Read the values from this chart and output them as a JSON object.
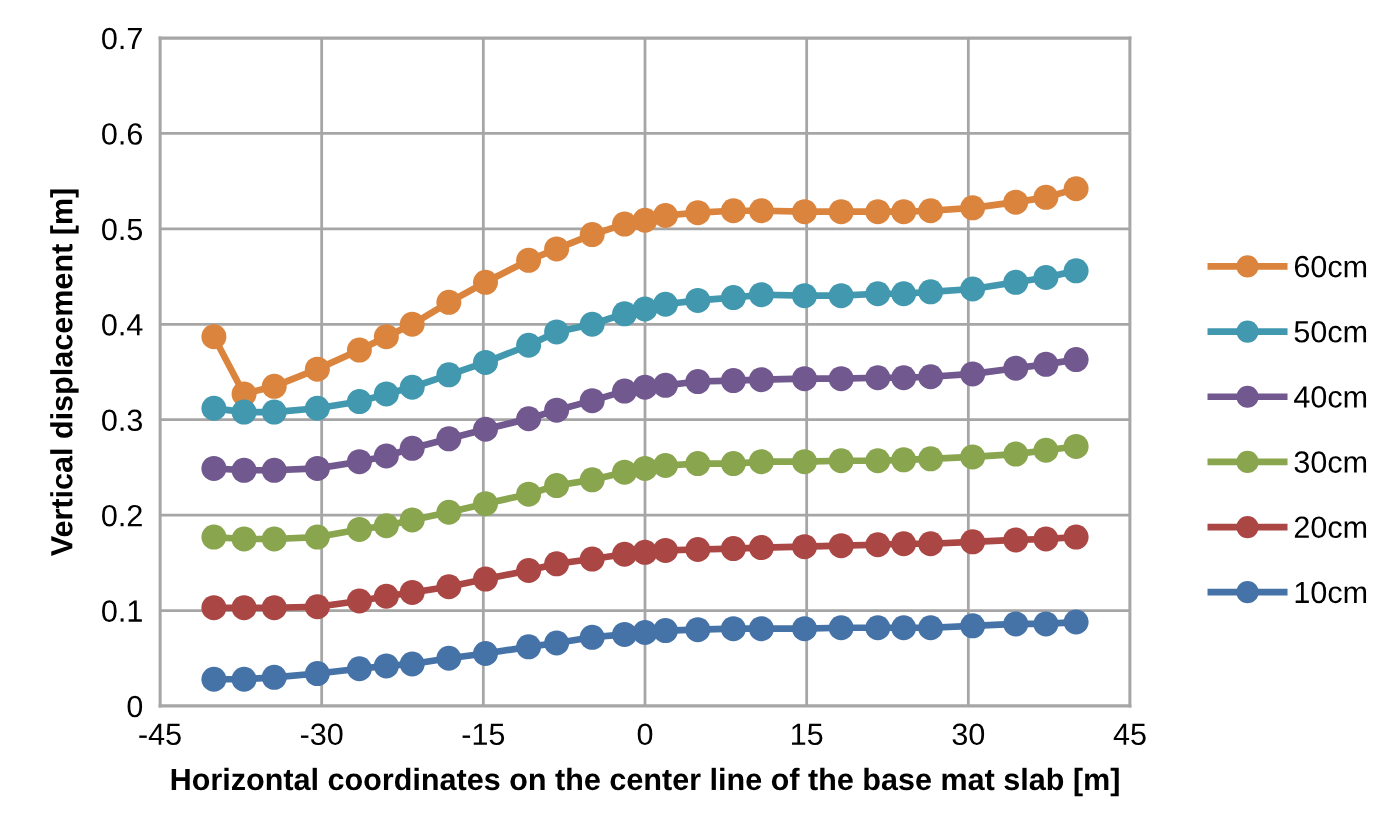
{
  "chart_data": {
    "type": "line",
    "xlabel": "Horizontal coordinates on the center line of the base mat slab [m]",
    "ylabel": "Vertical displacement [m]",
    "x": [
      -40,
      -37.2,
      -34.4,
      -30.4,
      -26.5,
      -24,
      -21.6,
      -18.2,
      -14.8,
      -10.8,
      -8.2,
      -4.9,
      -1.9,
      0,
      1.9,
      4.9,
      8.2,
      10.8,
      14.8,
      18.2,
      21.6,
      24,
      26.5,
      30.4,
      34.4,
      37.2,
      40
    ],
    "series": [
      {
        "name": "60cm",
        "color": "#db843d",
        "values": [
          0.387,
          0.327,
          0.335,
          0.353,
          0.373,
          0.387,
          0.4,
          0.423,
          0.444,
          0.467,
          0.479,
          0.494,
          0.505,
          0.509,
          0.514,
          0.517,
          0.519,
          0.519,
          0.518,
          0.518,
          0.518,
          0.518,
          0.519,
          0.522,
          0.528,
          0.533,
          0.542
        ]
      },
      {
        "name": "50cm",
        "color": "#4198af",
        "values": [
          0.312,
          0.308,
          0.308,
          0.312,
          0.319,
          0.327,
          0.334,
          0.347,
          0.36,
          0.378,
          0.392,
          0.4,
          0.411,
          0.416,
          0.421,
          0.425,
          0.428,
          0.431,
          0.43,
          0.43,
          0.432,
          0.432,
          0.434,
          0.437,
          0.444,
          0.449,
          0.456
        ]
      },
      {
        "name": "40cm",
        "color": "#71588f",
        "values": [
          0.249,
          0.247,
          0.247,
          0.249,
          0.256,
          0.262,
          0.27,
          0.28,
          0.29,
          0.301,
          0.31,
          0.32,
          0.33,
          0.334,
          0.336,
          0.34,
          0.341,
          0.342,
          0.343,
          0.343,
          0.344,
          0.344,
          0.345,
          0.348,
          0.354,
          0.358,
          0.363
        ]
      },
      {
        "name": "30cm",
        "color": "#89a54e",
        "values": [
          0.177,
          0.175,
          0.175,
          0.177,
          0.185,
          0.189,
          0.195,
          0.203,
          0.212,
          0.222,
          0.231,
          0.237,
          0.245,
          0.249,
          0.252,
          0.254,
          0.254,
          0.256,
          0.256,
          0.257,
          0.257,
          0.258,
          0.259,
          0.261,
          0.264,
          0.268,
          0.272
        ]
      },
      {
        "name": "20cm",
        "color": "#aa4643",
        "values": [
          0.103,
          0.103,
          0.103,
          0.104,
          0.11,
          0.115,
          0.119,
          0.125,
          0.133,
          0.142,
          0.149,
          0.154,
          0.159,
          0.161,
          0.163,
          0.164,
          0.165,
          0.166,
          0.167,
          0.168,
          0.169,
          0.17,
          0.17,
          0.172,
          0.174,
          0.175,
          0.177
        ]
      },
      {
        "name": "10cm",
        "color": "#4572a7",
        "values": [
          0.028,
          0.028,
          0.03,
          0.034,
          0.039,
          0.042,
          0.044,
          0.05,
          0.055,
          0.062,
          0.066,
          0.072,
          0.075,
          0.077,
          0.079,
          0.08,
          0.081,
          0.081,
          0.081,
          0.082,
          0.082,
          0.082,
          0.082,
          0.084,
          0.086,
          0.086,
          0.088
        ]
      }
    ],
    "xlim": [
      -45,
      45
    ],
    "xticks": [
      -45,
      -30,
      -15,
      0,
      15,
      30,
      45
    ],
    "ylim": [
      0,
      0.7
    ],
    "yticks": [
      0,
      0.1,
      0.2,
      0.3,
      0.4,
      0.5,
      0.6,
      0.7
    ],
    "grid": true,
    "legend": "right",
    "marker": "circle",
    "line_style": "solid"
  }
}
